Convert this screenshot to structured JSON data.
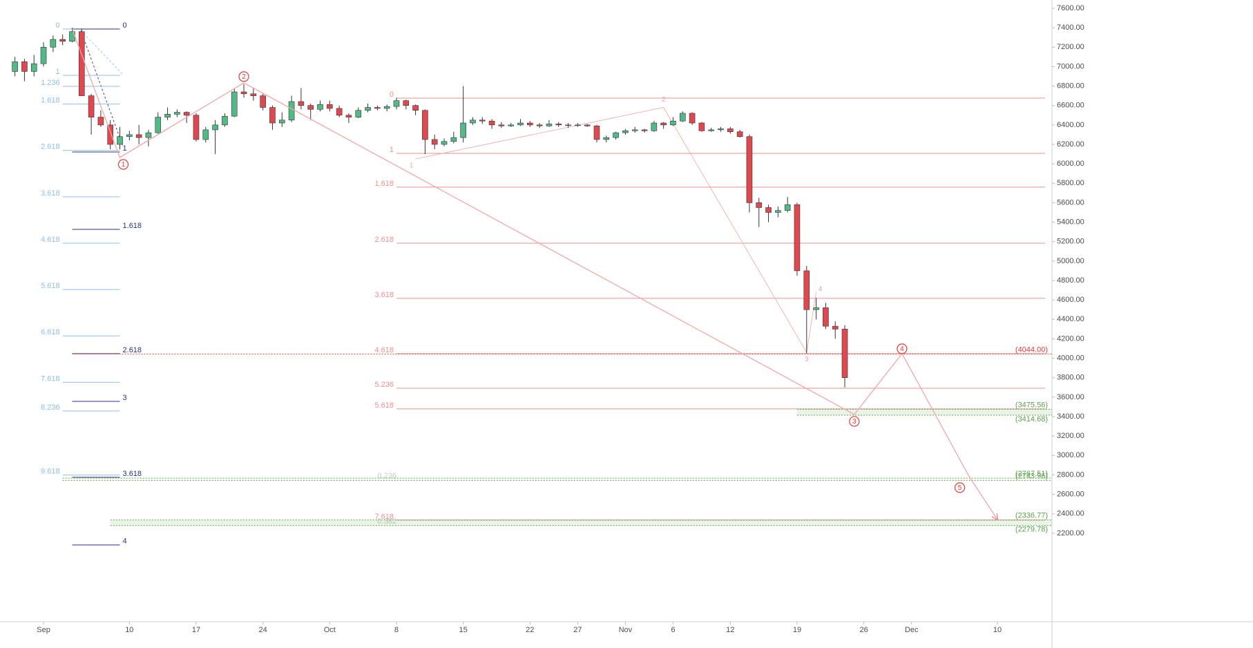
{
  "chart_data": {
    "type": "candlestick",
    "up_color": "#53b987",
    "down_color": "#e0484f",
    "grid": false,
    "xlim": [
      "08-27",
      "12-15"
    ],
    "ylim": [
      1290,
      7685
    ],
    "yticks": [
      {
        "value": 2200,
        "label": "2200.00"
      },
      {
        "value": 2400,
        "label": "2400.00"
      },
      {
        "value": 2600,
        "label": "2600.00"
      },
      {
        "value": 2800,
        "label": "2800.00"
      },
      {
        "value": 3000,
        "label": "3000.00"
      },
      {
        "value": 3200,
        "label": "3200.00"
      },
      {
        "value": 3400,
        "label": "3400.00"
      },
      {
        "value": 3600,
        "label": "3600.00"
      },
      {
        "value": 3800,
        "label": "3800.00"
      },
      {
        "value": 4000,
        "label": "4000.00"
      },
      {
        "value": 4200,
        "label": "4200.00"
      },
      {
        "value": 4400,
        "label": "4400.00"
      },
      {
        "value": 4600,
        "label": "4600.00"
      },
      {
        "value": 4800,
        "label": "4800.00"
      },
      {
        "value": 5000,
        "label": "5000.00"
      },
      {
        "value": 5200,
        "label": "5200.00"
      },
      {
        "value": 5400,
        "label": "5400.00"
      },
      {
        "value": 5600,
        "label": "5600.00"
      },
      {
        "value": 5800,
        "label": "5800.00"
      },
      {
        "value": 6000,
        "label": "6000.00"
      },
      {
        "value": 6200,
        "label": "6200.00"
      },
      {
        "value": 6400,
        "label": "6400.00"
      },
      {
        "value": 6600,
        "label": "6600.00"
      },
      {
        "value": 6800,
        "label": "6800.00"
      },
      {
        "value": 7000,
        "label": "7000.00"
      },
      {
        "value": 7200,
        "label": "7200.00"
      },
      {
        "value": 7400,
        "label": "7400.00"
      },
      {
        "value": 7600,
        "label": "7600.00"
      }
    ],
    "xticks": [
      {
        "value": "09-01",
        "label": "Sep"
      },
      {
        "value": "09-10",
        "label": "10"
      },
      {
        "value": "09-17",
        "label": "17"
      },
      {
        "value": "09-24",
        "label": "24"
      },
      {
        "value": "10-01",
        "label": "Oct"
      },
      {
        "value": "10-08",
        "label": "8"
      },
      {
        "value": "10-15",
        "label": "15"
      },
      {
        "value": "10-22",
        "label": "22"
      },
      {
        "value": "10-27",
        "label": "27"
      },
      {
        "value": "11-01",
        "label": "Nov"
      },
      {
        "value": "11-06",
        "label": "6"
      },
      {
        "value": "11-12",
        "label": "12"
      },
      {
        "value": "11-19",
        "label": "19"
      },
      {
        "value": "11-26",
        "label": "26"
      },
      {
        "value": "12-01",
        "label": "Dec"
      },
      {
        "value": "12-10",
        "label": "10"
      }
    ],
    "x": [
      "08-29",
      "08-30",
      "08-31",
      "09-01",
      "09-02",
      "09-03",
      "09-04",
      "09-05",
      "09-06",
      "09-07",
      "09-08",
      "09-09",
      "09-10",
      "09-11",
      "09-12",
      "09-13",
      "09-14",
      "09-15",
      "09-16",
      "09-17",
      "09-18",
      "09-19",
      "09-20",
      "09-21",
      "09-22",
      "09-23",
      "09-24",
      "09-25",
      "09-26",
      "09-27",
      "09-28",
      "09-29",
      "09-30",
      "10-01",
      "10-02",
      "10-03",
      "10-04",
      "10-05",
      "10-06",
      "10-07",
      "10-08",
      "10-09",
      "10-10",
      "10-11",
      "10-12",
      "10-13",
      "10-14",
      "10-15",
      "10-16",
      "10-17",
      "10-18",
      "10-19",
      "10-20",
      "10-21",
      "10-22",
      "10-23",
      "10-24",
      "10-25",
      "10-26",
      "10-27",
      "10-28",
      "10-29",
      "10-30",
      "10-31",
      "11-01",
      "11-02",
      "11-03",
      "11-04",
      "11-05",
      "11-06",
      "11-07",
      "11-08",
      "11-09",
      "11-10",
      "11-11",
      "11-12",
      "11-13",
      "11-14",
      "11-15",
      "11-16",
      "11-17",
      "11-18",
      "11-19",
      "11-20",
      "11-21",
      "11-22",
      "11-23",
      "11-24"
    ],
    "open": [
      6950,
      7050,
      6950,
      7030,
      7200,
      7280,
      7260,
      7360,
      6700,
      6480,
      6400,
      6200,
      6280,
      6300,
      6270,
      6320,
      6480,
      6510,
      6530,
      6500,
      6250,
      6350,
      6400,
      6490,
      6740,
      6720,
      6700,
      6580,
      6420,
      6450,
      6640,
      6600,
      6560,
      6610,
      6570,
      6500,
      6480,
      6550,
      6580,
      6570,
      6590,
      6650,
      6600,
      6550,
      6250,
      6200,
      6230,
      6270,
      6420,
      6450,
      6440,
      6400,
      6390,
      6400,
      6420,
      6400,
      6390,
      6410,
      6400,
      6400,
      6400,
      6390,
      6250,
      6270,
      6320,
      6340,
      6350,
      6340,
      6420,
      6400,
      6440,
      6520,
      6420,
      6340,
      6350,
      6360,
      6330,
      6280,
      5600,
      5550,
      5500,
      5520,
      5580,
      4900,
      4500,
      4520,
      4330,
      4300
    ],
    "high": [
      7100,
      7080,
      7120,
      7250,
      7320,
      7330,
      7400,
      7390,
      6720,
      6550,
      6450,
      6380,
      6340,
      6400,
      6350,
      6530,
      6580,
      6560,
      6540,
      6520,
      6380,
      6450,
      6520,
      6780,
      6820,
      6780,
      6720,
      6600,
      6530,
      6700,
      6780,
      6620,
      6650,
      6650,
      6600,
      6520,
      6580,
      6620,
      6600,
      6610,
      6680,
      6660,
      6610,
      6560,
      6300,
      6260,
      6330,
      6800,
      6480,
      6480,
      6460,
      6430,
      6420,
      6460,
      6440,
      6420,
      6450,
      6430,
      6420,
      6420,
      6410,
      6400,
      6290,
      6330,
      6360,
      6380,
      6360,
      6440,
      6430,
      6480,
      6540,
      6530,
      6430,
      6370,
      6380,
      6380,
      6350,
      6300,
      5650,
      5580,
      5560,
      5660,
      5600,
      4950,
      4620,
      4570,
      4380,
      4340
    ],
    "low": [
      6900,
      6850,
      6900,
      7000,
      7150,
      7220,
      7250,
      6700,
      6300,
      6380,
      6150,
      6150,
      6240,
      6200,
      6180,
      6310,
      6450,
      6480,
      6420,
      6230,
      6220,
      6100,
      6380,
      6480,
      6680,
      6650,
      6550,
      6350,
      6380,
      6430,
      6560,
      6450,
      6540,
      6540,
      6480,
      6420,
      6470,
      6530,
      6550,
      6540,
      6560,
      6560,
      6500,
      6100,
      6150,
      6180,
      6210,
      6220,
      6400,
      6410,
      6360,
      6370,
      6380,
      6390,
      6380,
      6370,
      6380,
      6380,
      6370,
      6380,
      6380,
      6220,
      6220,
      6250,
      6300,
      6320,
      6320,
      6330,
      6360,
      6390,
      6430,
      6400,
      6330,
      6330,
      6330,
      6310,
      6270,
      5500,
      5350,
      5400,
      5450,
      5500,
      4850,
      4050,
      4400,
      4300,
      4200,
      3700
    ],
    "close": [
      7050,
      6950,
      7030,
      7200,
      7280,
      7260,
      7360,
      6700,
      6480,
      6400,
      6200,
      6280,
      6300,
      6270,
      6320,
      6480,
      6510,
      6530,
      6500,
      6250,
      6350,
      6400,
      6490,
      6740,
      6720,
      6700,
      6580,
      6420,
      6450,
      6640,
      6600,
      6560,
      6610,
      6570,
      6500,
      6480,
      6550,
      6580,
      6570,
      6590,
      6650,
      6600,
      6550,
      6250,
      6200,
      6230,
      6270,
      6420,
      6450,
      6440,
      6400,
      6390,
      6400,
      6420,
      6400,
      6390,
      6410,
      6400,
      6400,
      6400,
      6390,
      6250,
      6270,
      6320,
      6340,
      6350,
      6340,
      6420,
      6400,
      6440,
      6520,
      6420,
      6340,
      6350,
      6360,
      6330,
      6280,
      5600,
      5550,
      5500,
      5520,
      5580,
      4900,
      4500,
      4520,
      4330,
      4300,
      3800
    ],
    "fib_sets": [
      {
        "color": "#8fbde6",
        "from": "09-03",
        "to": "09-09",
        "label_side": "left",
        "lines": true,
        "levels": [
          {
            "label": "0",
            "value": 7387
          },
          {
            "label": "1",
            "value": 6910
          },
          {
            "label": "1.236",
            "value": 6797
          },
          {
            "label": "1.618",
            "value": 6615
          },
          {
            "label": "2.618",
            "value": 6138
          },
          {
            "label": "3.618",
            "value": 5661
          },
          {
            "label": "4.618",
            "value": 5184
          },
          {
            "label": "5.618",
            "value": 4707
          },
          {
            "label": "6.618",
            "value": 4230
          },
          {
            "label": "7.618",
            "value": 3753
          },
          {
            "label": "8.236",
            "value": 3458
          },
          {
            "label": "9.618",
            "value": 2799
          }
        ]
      },
      {
        "color": "#2b2f86",
        "from": "09-04",
        "to": "09-09",
        "label_side": "right",
        "lines": true,
        "levels": [
          {
            "label": "0",
            "value": 7387
          },
          {
            "label": "1",
            "value": 6122
          },
          {
            "label": "1.618",
            "value": 5326
          },
          {
            "label": "2.618",
            "value": 4048
          },
          {
            "label": "3",
            "value": 3557
          },
          {
            "label": "3.618",
            "value": 2776
          },
          {
            "label": "4",
            "value": 2080
          }
        ]
      },
      {
        "color": "#ef8e8e",
        "from": "10-08",
        "to": "12-15",
        "label_side": "left",
        "lines": true,
        "levels": [
          {
            "label": "0",
            "value": 6676
          },
          {
            "label": "1",
            "value": 6108
          },
          {
            "label": "1.618",
            "value": 5760
          },
          {
            "label": "2.618",
            "value": 5184
          },
          {
            "label": "3.618",
            "value": 4616
          },
          {
            "label": "4.618",
            "value": 4048
          },
          {
            "label": "5.236",
            "value": 3692
          },
          {
            "label": "5.618",
            "value": 3479
          },
          {
            "label": "7.618",
            "value": 2335
          }
        ]
      },
      {
        "color": "#c9c9c9",
        "from": "10-06",
        "to": "10-08",
        "label_side": "center",
        "lines": false,
        "levels": [
          {
            "label": "0.236",
            "value": 2789
          },
          {
            "label": "0.382",
            "value": 2320
          }
        ]
      }
    ],
    "price_tags": [
      {
        "label": "(4044.00)",
        "value": 4044,
        "color": "#e53935",
        "from": "09-04",
        "band_to_next": false
      },
      {
        "label": "(3475.56)",
        "value": 3475.56,
        "color": "#5aa04a",
        "from": "11-19",
        "band_to_next": true
      },
      {
        "label": "(3414.68)",
        "value": 3414.68,
        "color": "#5aa04a",
        "from": "11-19",
        "band_to_next": false
      },
      {
        "label": "(2767.51)",
        "value": 2767.51,
        "color": "#5aa04a",
        "from": "09-03",
        "band_to_next": false
      },
      {
        "label": "(2743.96)",
        "value": 2743.96,
        "color": "#5aa04a",
        "from": "09-03",
        "band_to_next": false
      },
      {
        "label": "(2336.77)",
        "value": 2336.77,
        "color": "#5aa04a",
        "from": "09-08",
        "band_to_next": true
      },
      {
        "label": "(2279.78)",
        "value": 2279.78,
        "color": "#5aa04a",
        "from": "09-08",
        "band_to_next": false
      }
    ],
    "wave": {
      "color": "#e53935",
      "origin": {
        "x": "09-04",
        "value": 7387
      },
      "labels": [
        "1",
        "2",
        "3",
        "4",
        "5"
      ],
      "points": [
        {
          "x": "09-09",
          "value": 6065
        },
        {
          "x": "09-22",
          "value": 6833
        },
        {
          "x": "11-25",
          "value": 3422
        },
        {
          "x": "11-30",
          "value": 4048
        },
        {
          "x": "12-07",
          "value": 2790
        }
      ],
      "target": {
        "x": "12-10",
        "value": 2342
      }
    },
    "minor_wave": {
      "color": "#f2a3a3",
      "labels": [
        "1",
        "2",
        "3",
        "4"
      ],
      "points": [
        {
          "x": "10-10",
          "value": 6050
        },
        {
          "x": "11-05",
          "value": 6580
        },
        {
          "x": "11-20",
          "value": 4060
        },
        {
          "x": "11-21",
          "value": 4680
        }
      ]
    }
  }
}
